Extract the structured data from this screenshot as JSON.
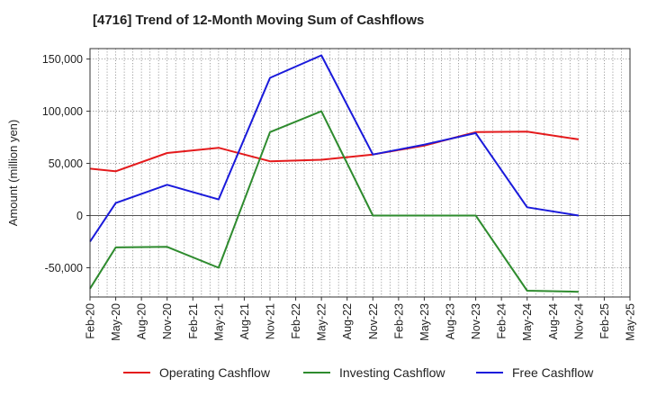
{
  "chart_data": {
    "type": "line",
    "title": "[4716]  Trend of 12-Month Moving Sum of Cashflows",
    "ylabel": "Amount (million yen)",
    "xlabel": "",
    "categories": [
      "Feb-20",
      "May-20",
      "Aug-20",
      "Nov-20",
      "Feb-21",
      "May-21",
      "Aug-21",
      "Nov-21",
      "Feb-22",
      "May-22",
      "Aug-22",
      "Nov-22",
      "Feb-23",
      "May-23",
      "Aug-23",
      "Nov-23",
      "Feb-24",
      "May-24",
      "Aug-24",
      "Nov-24",
      "Feb-25",
      "May-25"
    ],
    "ylim": [
      -78000,
      160000
    ],
    "yticks": [
      -50000,
      0,
      50000,
      100000,
      150000
    ],
    "ytick_labels": [
      "-50,000",
      "0",
      "50,000",
      "100,000",
      "150,000"
    ],
    "grid": true,
    "legend_position": "bottom",
    "series": [
      {
        "name": "Operating Cashflow",
        "color": "#e41a1c",
        "values": [
          45000,
          42500,
          null,
          60000,
          null,
          65000,
          null,
          52000,
          null,
          53500,
          null,
          58500,
          null,
          67000,
          null,
          80000,
          null,
          80500,
          null,
          73000,
          null,
          null
        ]
      },
      {
        "name": "Investing Cashflow",
        "color": "#2e8b2e",
        "values": [
          -70000,
          -30500,
          null,
          -30000,
          null,
          -50000,
          null,
          80000,
          null,
          100000,
          null,
          0,
          null,
          0,
          null,
          0,
          null,
          -72000,
          null,
          -73000,
          null,
          null
        ]
      },
      {
        "name": "Free Cashflow",
        "color": "#1a1adb",
        "values": [
          -25000,
          12000,
          null,
          29500,
          null,
          15500,
          null,
          132000,
          null,
          153500,
          null,
          58500,
          null,
          68000,
          null,
          79000,
          null,
          8000,
          null,
          0,
          null,
          null
        ]
      }
    ]
  }
}
